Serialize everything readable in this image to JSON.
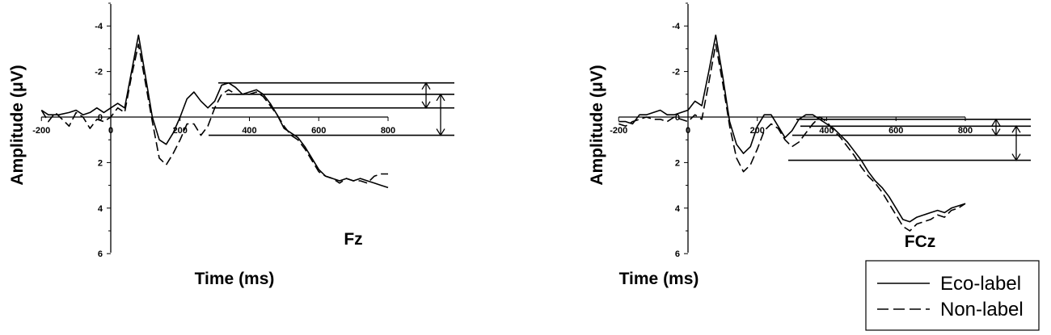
{
  "chart_data": [
    {
      "type": "line",
      "electrode": "Fz",
      "xlabel": "Time (ms)",
      "ylabel": "Amplitude (μV)",
      "xlim": [
        -200,
        800
      ],
      "ylim": [
        6,
        -5
      ],
      "y_inverted": true,
      "x_ticks": [
        -200,
        0,
        200,
        400,
        600,
        800
      ],
      "y_ticks": [
        -4,
        -2,
        0,
        2,
        4,
        6
      ],
      "series": [
        {
          "name": "Eco-label",
          "style": "solid",
          "x": [
            -200,
            -180,
            -150,
            -120,
            -100,
            -80,
            -60,
            -40,
            -20,
            0,
            20,
            40,
            60,
            80,
            100,
            120,
            140,
            160,
            180,
            200,
            220,
            240,
            260,
            280,
            300,
            320,
            340,
            360,
            380,
            400,
            420,
            440,
            460,
            480,
            500,
            520,
            540,
            560,
            580,
            600,
            620,
            640,
            660,
            680,
            700,
            720,
            740,
            760,
            780,
            800
          ],
          "y": [
            -0.3,
            -0.1,
            -0.1,
            -0.2,
            -0.3,
            -0.1,
            -0.2,
            -0.4,
            -0.2,
            -0.4,
            -0.6,
            -0.4,
            -2.0,
            -3.6,
            -1.8,
            0.0,
            1.0,
            1.2,
            0.7,
            0.0,
            -0.8,
            -1.1,
            -0.7,
            -0.4,
            -0.7,
            -1.4,
            -1.5,
            -1.3,
            -1.0,
            -1.1,
            -1.2,
            -1.0,
            -0.6,
            -0.1,
            0.5,
            0.7,
            0.9,
            1.3,
            1.8,
            2.3,
            2.6,
            2.7,
            2.8,
            2.7,
            2.8,
            2.7,
            2.8,
            2.9,
            3.0,
            3.1
          ]
        },
        {
          "name": "Non-label",
          "style": "dashed",
          "x": [
            -200,
            -180,
            -160,
            -140,
            -120,
            -100,
            -80,
            -60,
            -40,
            -20,
            0,
            20,
            40,
            60,
            80,
            100,
            120,
            140,
            160,
            180,
            200,
            220,
            240,
            260,
            280,
            300,
            320,
            340,
            360,
            380,
            400,
            420,
            440,
            460,
            480,
            500,
            520,
            540,
            560,
            580,
            600,
            620,
            640,
            660,
            680,
            700,
            720,
            740,
            760,
            780,
            800
          ],
          "y": [
            -0.3,
            0.2,
            -0.2,
            0.1,
            0.4,
            -0.2,
            0.0,
            0.5,
            0.1,
            0.2,
            0.0,
            -0.4,
            -0.2,
            -1.8,
            -3.2,
            -1.5,
            0.2,
            1.8,
            2.1,
            1.6,
            1.0,
            0.3,
            0.3,
            0.8,
            0.4,
            -0.4,
            -1.0,
            -1.2,
            -1.0,
            -1.0,
            -1.0,
            -1.1,
            -0.9,
            -0.5,
            -0.1,
            0.4,
            0.8,
            1.0,
            1.4,
            1.9,
            2.4,
            2.6,
            2.7,
            2.9,
            2.7,
            2.8,
            2.8,
            2.9,
            2.6,
            2.5,
            2.5
          ]
        }
      ],
      "reference_levels": [
        -1.5,
        -1.0,
        -0.4,
        0.8
      ]
    },
    {
      "type": "line",
      "electrode": "FCz",
      "xlabel": "Time (ms)",
      "ylabel": "Amplitude (μV)",
      "xlim": [
        -200,
        800
      ],
      "ylim": [
        6,
        -5
      ],
      "y_inverted": true,
      "x_ticks": [
        -200,
        0,
        200,
        400,
        600,
        800
      ],
      "y_ticks": [
        -4,
        -2,
        0,
        2,
        4,
        6
      ],
      "series": [
        {
          "name": "Eco-label",
          "style": "solid",
          "x": [
            -200,
            -180,
            -160,
            -140,
            -120,
            -100,
            -80,
            -60,
            -40,
            -20,
            0,
            20,
            40,
            60,
            80,
            100,
            120,
            140,
            160,
            180,
            200,
            220,
            240,
            260,
            280,
            300,
            320,
            340,
            360,
            380,
            400,
            420,
            440,
            460,
            480,
            500,
            520,
            540,
            560,
            580,
            600,
            620,
            640,
            660,
            680,
            700,
            720,
            740,
            760,
            780,
            800
          ],
          "y": [
            0.2,
            0.2,
            0.3,
            -0.1,
            -0.1,
            -0.2,
            -0.3,
            -0.1,
            -0.1,
            -0.2,
            -0.3,
            -0.7,
            -0.5,
            -2.0,
            -3.6,
            -1.8,
            0.2,
            1.2,
            1.6,
            1.3,
            0.4,
            -0.1,
            -0.1,
            0.4,
            0.9,
            0.6,
            0.1,
            -0.1,
            -0.1,
            0.1,
            0.3,
            0.5,
            0.8,
            1.1,
            1.5,
            1.9,
            2.4,
            2.8,
            3.1,
            3.5,
            4.0,
            4.5,
            4.6,
            4.4,
            4.3,
            4.2,
            4.1,
            4.2,
            4.0,
            3.9,
            3.8
          ]
        },
        {
          "name": "Non-label",
          "style": "dashed",
          "x": [
            -200,
            -180,
            -160,
            -140,
            -120,
            -100,
            -80,
            -60,
            -40,
            -20,
            0,
            20,
            40,
            60,
            80,
            100,
            120,
            140,
            160,
            180,
            200,
            220,
            240,
            260,
            280,
            300,
            320,
            340,
            360,
            380,
            400,
            420,
            440,
            460,
            480,
            500,
            520,
            540,
            560,
            580,
            600,
            620,
            640,
            660,
            680,
            700,
            720,
            740,
            760,
            780,
            800
          ],
          "y": [
            0.3,
            0.4,
            0.2,
            0.1,
            0.0,
            0.1,
            0.1,
            0.2,
            0.0,
            0.1,
            0.2,
            -0.1,
            0.1,
            -1.5,
            -3.2,
            -1.5,
            0.4,
            1.8,
            2.4,
            2.1,
            1.4,
            0.6,
            0.3,
            0.5,
            1.0,
            1.3,
            1.1,
            0.7,
            0.3,
            0.0,
            0.2,
            0.6,
            0.9,
            1.3,
            1.7,
            2.2,
            2.6,
            2.9,
            3.3,
            3.8,
            4.3,
            4.8,
            5.0,
            4.7,
            4.6,
            4.5,
            4.3,
            4.4,
            4.1,
            4.0,
            3.8
          ]
        }
      ],
      "reference_levels": [
        0.1,
        0.4,
        0.8,
        1.9
      ]
    }
  ],
  "legend": {
    "entries": [
      {
        "label": "Eco-label",
        "style": "solid"
      },
      {
        "label": "Non-label",
        "style": "dashed"
      }
    ]
  }
}
